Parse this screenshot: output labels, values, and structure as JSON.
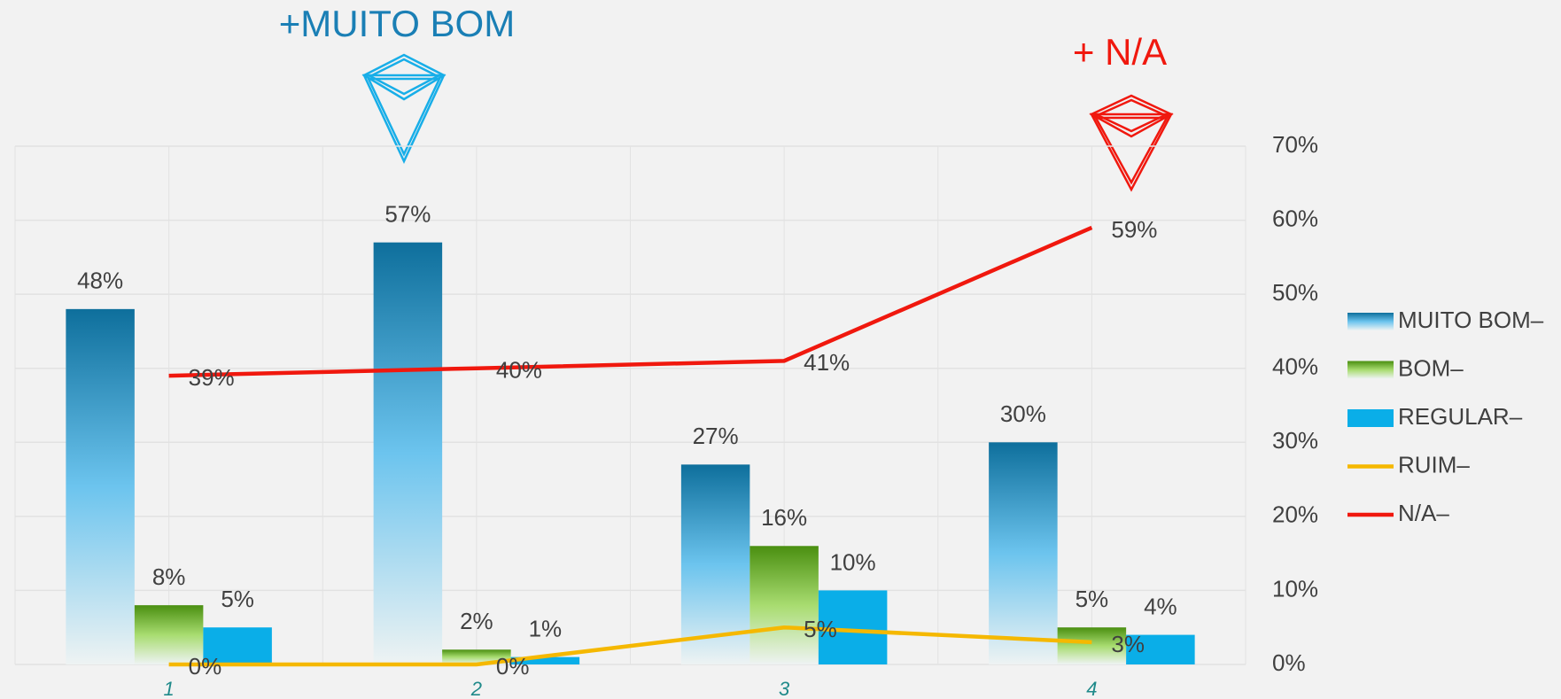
{
  "chart_data": {
    "type": "bar",
    "categories": [
      "1",
      "2",
      "3",
      "4"
    ],
    "series": [
      {
        "name": "MUITO BOM–",
        "color": "#0e6f9c",
        "kind": "bar",
        "values": [
          48,
          57,
          27,
          30
        ],
        "value_labels": [
          "48%",
          "57%",
          "27%",
          "30%"
        ]
      },
      {
        "name": "BOM–",
        "color": "#4a8f10",
        "kind": "bar",
        "values": [
          8,
          2,
          16,
          5
        ],
        "value_labels": [
          "8%",
          "2%",
          "16%",
          "5%"
        ]
      },
      {
        "name": "REGULAR–",
        "color": "#0aaee8",
        "kind": "bar",
        "values": [
          5,
          1,
          10,
          4
        ],
        "value_labels": [
          "5%",
          "1%",
          "10%",
          "4%"
        ]
      },
      {
        "name": "RUIM–",
        "color": "#f5b800",
        "kind": "line",
        "values": [
          0,
          0,
          5,
          3
        ],
        "value_labels": [
          "0%",
          "0%",
          "5%",
          "3%"
        ]
      },
      {
        "name": "N/A–",
        "color": "#f0180e",
        "kind": "line",
        "values": [
          39,
          40,
          41,
          59
        ],
        "value_labels": [
          "39%",
          "40%",
          "41%",
          "59%"
        ]
      }
    ],
    "annotations": [
      {
        "text": "+MUITO BOM",
        "color": "#1a7fb5"
      },
      {
        "text": "+ N/A",
        "color": "#f0180e"
      }
    ],
    "ylim": [
      0,
      70
    ],
    "yticks": [
      {
        "value": 0,
        "label": "0%"
      },
      {
        "value": 10,
        "label": "10%"
      },
      {
        "value": 20,
        "label": "20%"
      },
      {
        "value": 30,
        "label": "30%"
      },
      {
        "value": 40,
        "label": "40%"
      },
      {
        "value": 50,
        "label": "50%"
      },
      {
        "value": 60,
        "label": "60%"
      },
      {
        "value": 70,
        "label": "70%"
      }
    ],
    "grid": true,
    "legend": "right"
  }
}
